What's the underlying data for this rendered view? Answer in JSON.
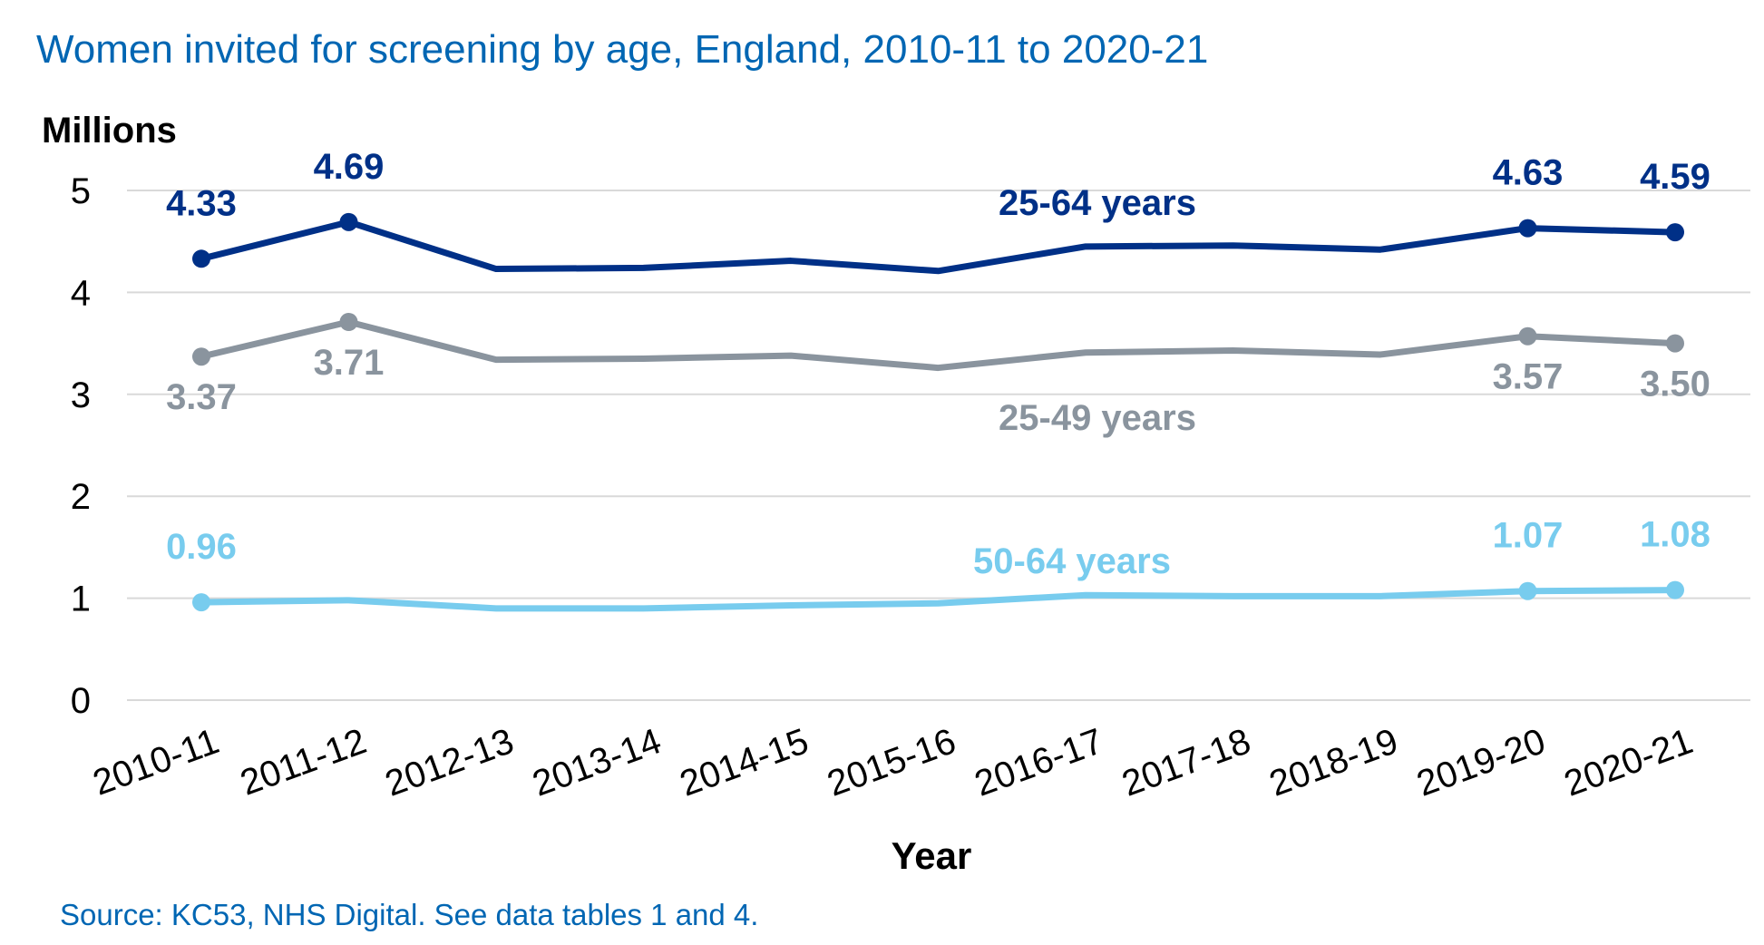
{
  "title": "Women invited for screening by age, England, 2010-11 to 2020-21",
  "source": "Source: KC53, NHS Digital.  See data tables 1 and 4.",
  "chart_data": {
    "type": "line",
    "ylabel": "Millions",
    "xlabel": "Year",
    "ylim": [
      0,
      5
    ],
    "yticks": [
      "0",
      "1",
      "2",
      "3",
      "4",
      "5"
    ],
    "grid": true,
    "categories": [
      "2010-11",
      "2011-12",
      "2012-13",
      "2013-14",
      "2014-15",
      "2015-16",
      "2016-17",
      "2017-18",
      "2018-19",
      "2019-20",
      "2020-21"
    ],
    "series": [
      {
        "name": "25-64 years",
        "color": "#003087",
        "values": [
          4.33,
          4.69,
          4.23,
          4.24,
          4.31,
          4.21,
          4.45,
          4.46,
          4.42,
          4.63,
          4.59
        ],
        "labels": [
          {
            "index": 0,
            "text": "4.33"
          },
          {
            "index": 1,
            "text": "4.69"
          },
          {
            "index": 9,
            "text": "4.63"
          },
          {
            "index": 10,
            "text": "4.59"
          }
        ]
      },
      {
        "name": "25-49 years",
        "color": "#8A949E",
        "values": [
          3.37,
          3.71,
          3.34,
          3.35,
          3.38,
          3.26,
          3.41,
          3.43,
          3.39,
          3.57,
          3.5
        ],
        "labels": [
          {
            "index": 0,
            "text": "3.37"
          },
          {
            "index": 1,
            "text": "3.71"
          },
          {
            "index": 9,
            "text": "3.57"
          },
          {
            "index": 10,
            "text": "3.50"
          }
        ]
      },
      {
        "name": "50-64 years",
        "color": "#78CCEE",
        "values": [
          0.96,
          0.98,
          0.9,
          0.9,
          0.93,
          0.95,
          1.03,
          1.02,
          1.02,
          1.07,
          1.08
        ],
        "labels": [
          {
            "index": 0,
            "text": "0.96"
          },
          {
            "index": 9,
            "text": "1.07"
          },
          {
            "index": 10,
            "text": "1.08"
          }
        ]
      }
    ]
  }
}
